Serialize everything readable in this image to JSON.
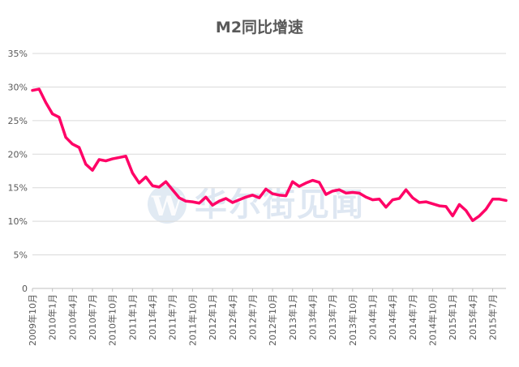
{
  "watermark": {
    "text": "华尔街见闻",
    "logo_letter": "W"
  },
  "chart_data": {
    "type": "line",
    "title": "M2同比增速",
    "xlabel": "",
    "ylabel": "",
    "ylim": [
      0,
      35
    ],
    "yticks": [
      "0",
      "5%",
      "10%",
      "15%",
      "20%",
      "25%",
      "30%",
      "35%"
    ],
    "ytick_values": [
      0,
      5,
      10,
      15,
      20,
      25,
      30,
      35
    ],
    "grid": true,
    "legend": "none",
    "color": "#ff0066",
    "xtick_labels": [
      "2009年10月",
      "2010年1月",
      "2010年4月",
      "2010年7月",
      "2010年10月",
      "2011年1月",
      "2011年4月",
      "2011年7月",
      "2011年10月",
      "2012年1月",
      "2012年4月",
      "2012年7月",
      "2012年10月",
      "2013年1月",
      "2013年4月",
      "2013年7月",
      "2013年10月",
      "2014年1月",
      "2014年4月",
      "2014年7月",
      "2014年10月",
      "2015年1月",
      "2015年4月",
      "2015年7月"
    ],
    "x": [
      "2009年10月",
      "2009年11月",
      "2009年12月",
      "2010年1月",
      "2010年2月",
      "2010年3月",
      "2010年4月",
      "2010年5月",
      "2010年6月",
      "2010年7月",
      "2010年8月",
      "2010年9月",
      "2010年10月",
      "2010年11月",
      "2010年12月",
      "2011年1月",
      "2011年2月",
      "2011年3月",
      "2011年4月",
      "2011年5月",
      "2011年6月",
      "2011年7月",
      "2011年8月",
      "2011年9月",
      "2011年10月",
      "2011年11月",
      "2011年12月",
      "2012年1月",
      "2012年2月",
      "2012年3月",
      "2012年4月",
      "2012年5月",
      "2012年6月",
      "2012年7月",
      "2012年8月",
      "2012年9月",
      "2012年10月",
      "2012年11月",
      "2012年12月",
      "2013年1月",
      "2013年2月",
      "2013年3月",
      "2013年4月",
      "2013年5月",
      "2013年6月",
      "2013年7月",
      "2013年8月",
      "2013年9月",
      "2013年10月",
      "2013年11月",
      "2013年12月",
      "2014年1月",
      "2014年2月",
      "2014年3月",
      "2014年4月",
      "2014年5月",
      "2014年6月",
      "2014年7月",
      "2014年8月",
      "2014年9月",
      "2014年10月",
      "2014年11月",
      "2014年12月",
      "2015年1月",
      "2015年2月",
      "2015年3月",
      "2015年4月",
      "2015年5月",
      "2015年6月",
      "2015年7月",
      "2015年8月",
      "2015年9月"
    ],
    "series": [
      {
        "values": [
          29.5,
          29.7,
          27.7,
          26.0,
          25.5,
          22.5,
          21.5,
          21.0,
          18.5,
          17.6,
          19.2,
          19.0,
          19.3,
          19.5,
          19.7,
          17.2,
          15.7,
          16.6,
          15.3,
          15.1,
          15.9,
          14.7,
          13.5,
          13.0,
          12.9,
          12.7,
          13.6,
          12.4,
          13.0,
          13.4,
          12.8,
          13.2,
          13.6,
          13.9,
          13.5,
          14.8,
          14.1,
          13.9,
          13.8,
          15.9,
          15.2,
          15.7,
          16.1,
          15.8,
          14.0,
          14.5,
          14.7,
          14.2,
          14.3,
          14.2,
          13.6,
          13.2,
          13.3,
          12.1,
          13.2,
          13.4,
          14.7,
          13.5,
          12.8,
          12.9,
          12.6,
          12.3,
          12.2,
          10.8,
          12.5,
          11.6,
          10.1,
          10.8,
          11.8,
          13.3,
          13.3,
          13.1
        ]
      }
    ]
  }
}
